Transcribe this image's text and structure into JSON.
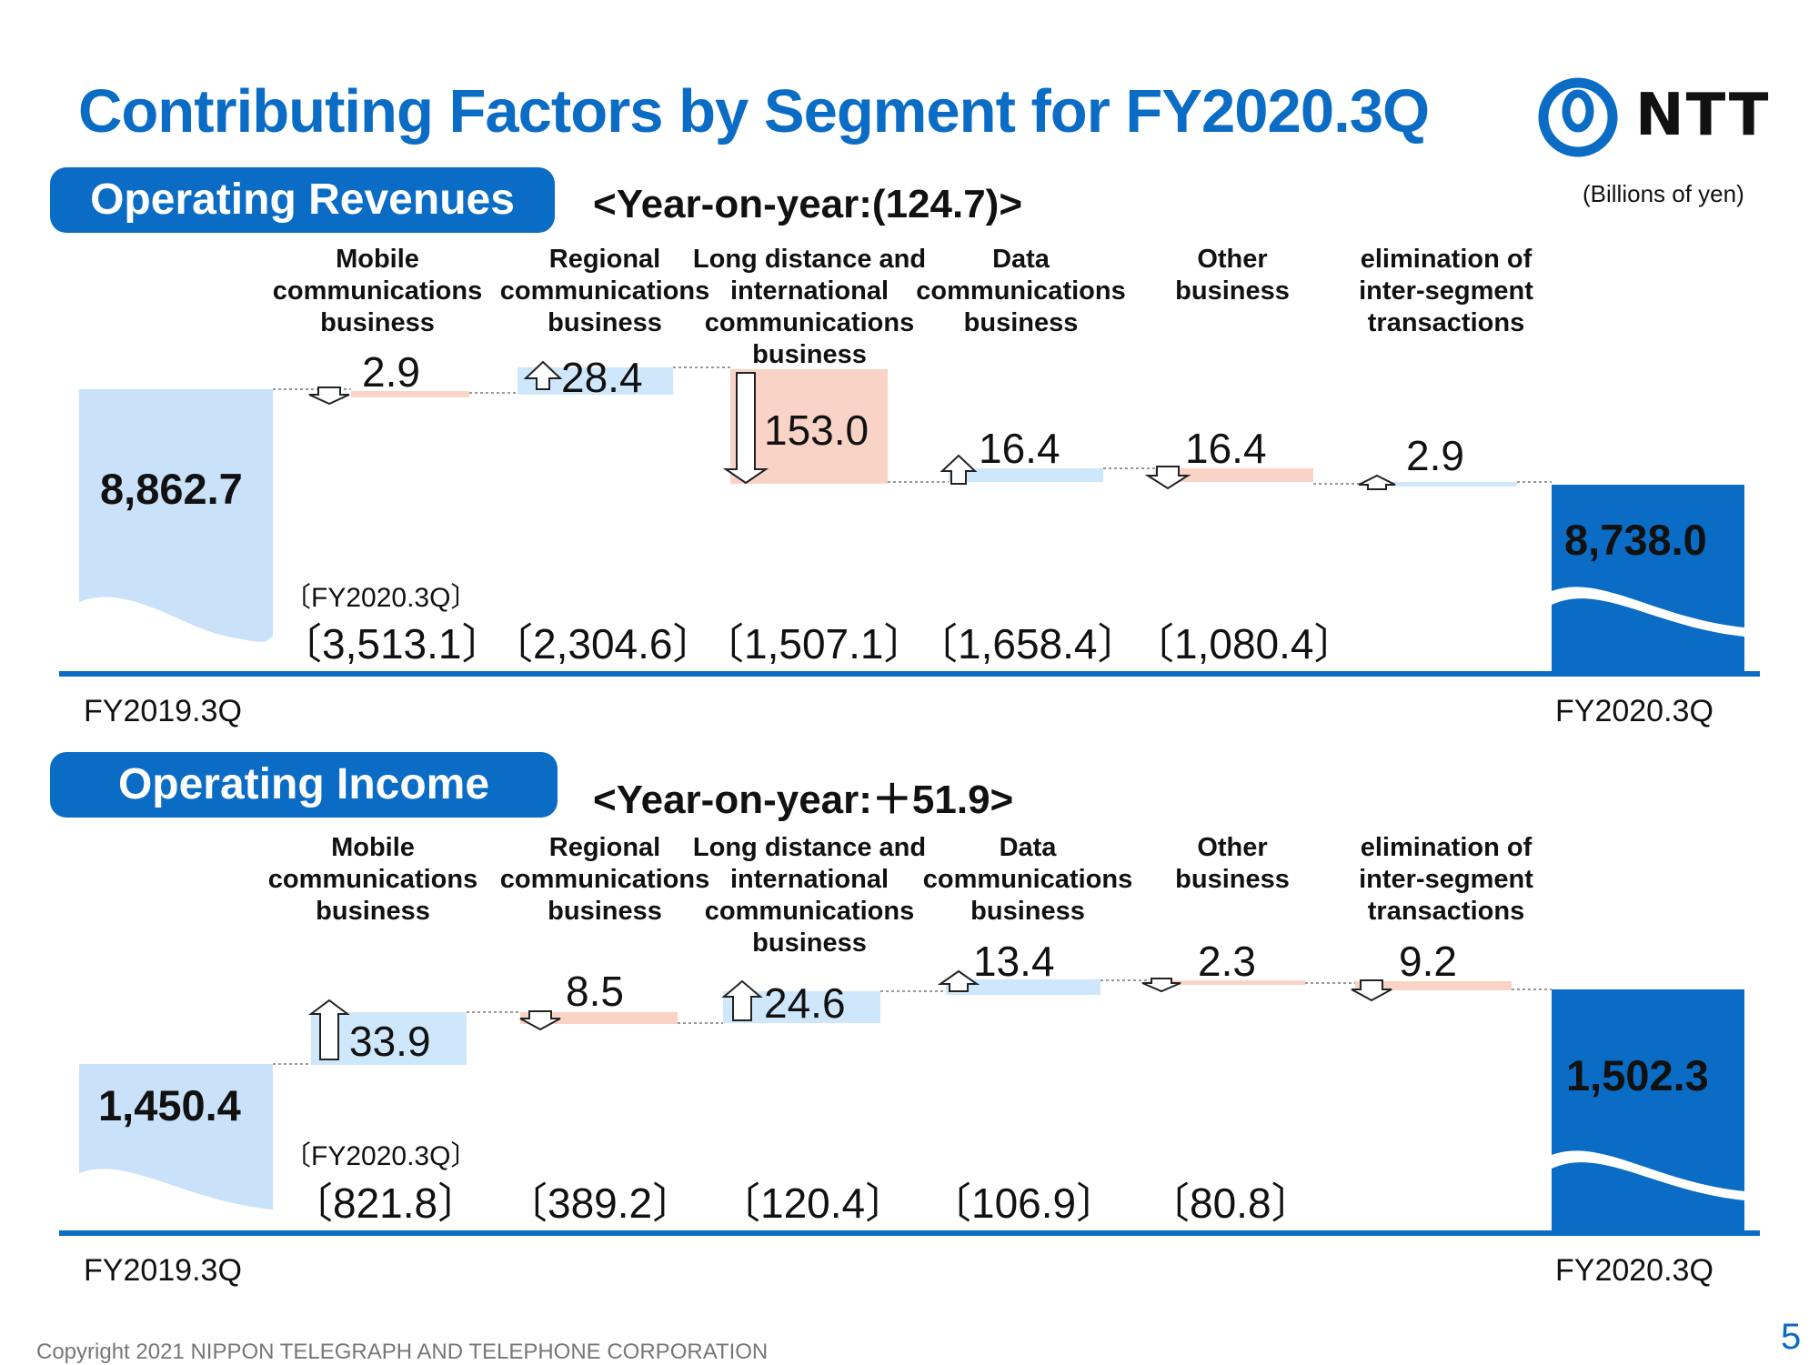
{
  "page": {
    "title": "Contributing Factors by Segment for FY2020.3Q",
    "logo_text": "NTT",
    "units": "(Billions of yen)",
    "copyright": "Copyright 2021 NIPPON TELEGRAPH AND TELEPHONE CORPORATION",
    "page_number": "5"
  },
  "segments": [
    "Mobile communications business",
    "Regional communications business",
    "Long distance and international communications business",
    "Data communications business",
    "Other business",
    "elimination of inter-segment transactions"
  ],
  "revenues": {
    "heading": "Operating Revenues",
    "yoy": "<Year-on-year:(124.7)>",
    "start_label": "FY2019.3Q",
    "end_label": "FY2020.3Q",
    "start_value": "8,862.7",
    "end_value": "8,738.0",
    "changes": [
      "2.9",
      "28.4",
      "153.0",
      "16.4",
      "16.4",
      "2.9"
    ],
    "fy_label": "〔FY2020.3Q〕",
    "segment_totals": [
      "〔3,513.1〕",
      "〔2,304.6〕",
      "〔1,507.1〕",
      "〔1,658.4〕",
      "〔1,080.4〕"
    ]
  },
  "income": {
    "heading": "Operating Income",
    "yoy": "<Year-on-year:＋51.9>",
    "start_label": "FY2019.3Q",
    "end_label": "FY2020.3Q",
    "start_value": "1,450.4",
    "end_value": "1,502.3",
    "changes": [
      "33.9",
      "8.5",
      "24.6",
      "13.4",
      "2.3",
      "9.2"
    ],
    "fy_label": "〔FY2020.3Q〕",
    "segment_totals": [
      "〔821.8〕",
      "〔389.2〕",
      "〔120.4〕",
      "〔106.9〕",
      "〔80.8〕"
    ]
  },
  "colors": {
    "brand_blue": "#0a6cc4",
    "increase": "#cfe7fb",
    "decrease": "#f9d3c6",
    "start_bar": "#c9e2fa"
  },
  "chart_data": [
    {
      "type": "bar",
      "subtype": "waterfall",
      "title": "Operating Revenues",
      "categories": [
        "FY2019.3Q",
        "Mobile communications business",
        "Regional communications business",
        "Long distance and international communications business",
        "Data communications business",
        "Other business",
        "elimination of inter-segment transactions",
        "FY2020.3Q"
      ],
      "values": [
        8862.7,
        -2.9,
        28.4,
        -153.0,
        16.4,
        -16.4,
        2.9,
        8738.0
      ],
      "segment_values_FY2020_3Q": [
        3513.1,
        2304.6,
        1507.1,
        1658.4,
        1080.4
      ]
    },
    {
      "type": "bar",
      "subtype": "waterfall",
      "title": "Operating Income",
      "categories": [
        "FY2019.3Q",
        "Mobile communications business",
        "Regional communications business",
        "Long distance and international communications business",
        "Data communications business",
        "Other business",
        "elimination of inter-segment transactions",
        "FY2020.3Q"
      ],
      "values": [
        1450.4,
        33.9,
        -8.5,
        24.6,
        13.4,
        -2.3,
        -9.2,
        1502.3
      ],
      "segment_values_FY2020_3Q": [
        821.8,
        389.2,
        120.4,
        106.9,
        80.8
      ]
    }
  ]
}
